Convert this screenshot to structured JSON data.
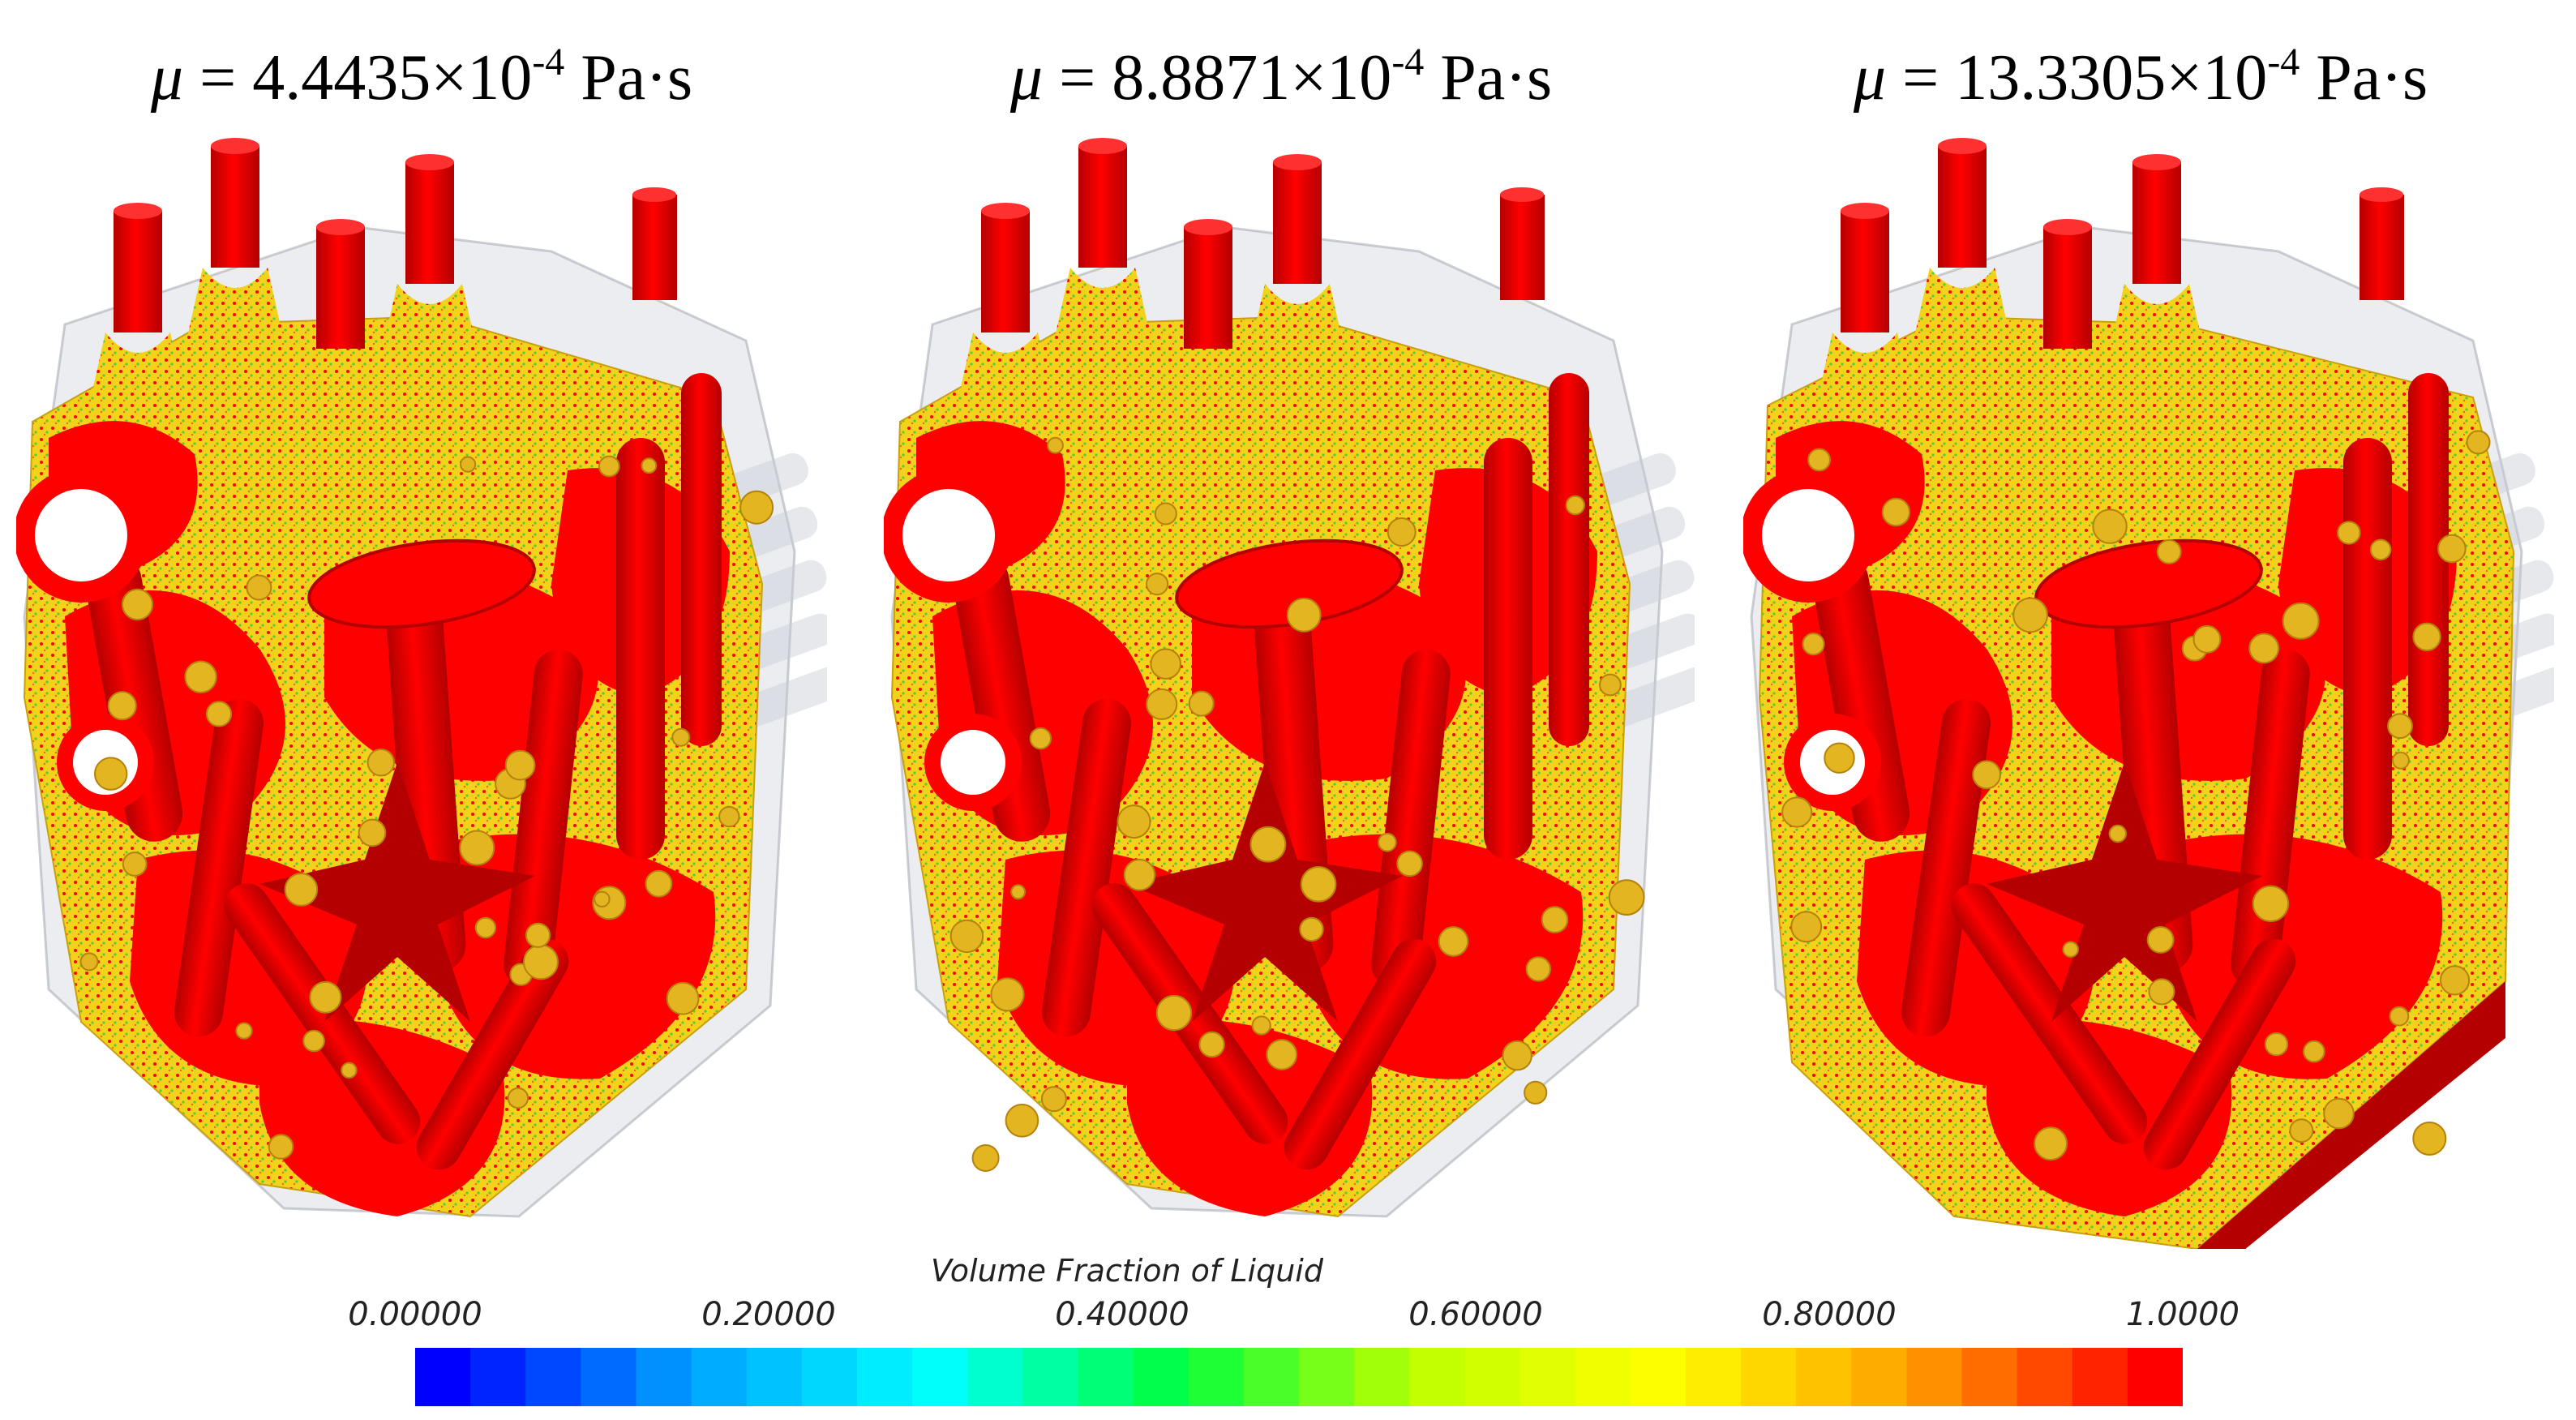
{
  "panels": [
    {
      "mu_symbol": "μ",
      "equals": " = ",
      "value": "4.4435×10",
      "exponent": "-4",
      "unit": " Pa·s"
    },
    {
      "mu_symbol": "μ",
      "equals": " = ",
      "value": "8.8871×10",
      "exponent": "-4",
      "unit": " Pa·s"
    },
    {
      "mu_symbol": "μ",
      "equals": " = ",
      "value": "13.3305×10",
      "exponent": "-4",
      "unit": " Pa·s"
    }
  ],
  "legend": {
    "title": "Volume Fraction of Liquid",
    "ticks": [
      "0.00000",
      "0.20000",
      "0.40000",
      "0.60000",
      "0.80000",
      "1.0000"
    ],
    "tick_values": [
      0.0,
      0.2,
      0.4,
      0.6,
      0.8,
      1.0
    ],
    "range": [
      0,
      1
    ],
    "segments": 32,
    "colormap": [
      "#0000ff",
      "#00a0ff",
      "#00ffff",
      "#00ff40",
      "#c0ff00",
      "#ffff00",
      "#ffa000",
      "#ff0000"
    ]
  },
  "render_colors": {
    "liquid": "#ff0000",
    "liquid_dark": "#b40000",
    "interface": "#f2d21a",
    "interface_green": "#4fcf3a",
    "mold_glass": "#c8ccd4"
  }
}
